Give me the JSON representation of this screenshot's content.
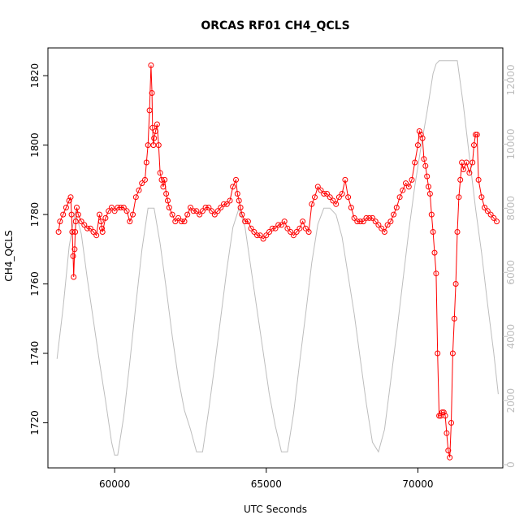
{
  "chart_data": {
    "type": "line",
    "title": "ORCAS RF01 CH4_QCLS",
    "xlabel": "UTC Seconds",
    "ylabel": "CH4_QCLS",
    "xlim": [
      57800,
      72800
    ],
    "ylim": [
      1707,
      1828
    ],
    "x_ticks": [
      60000,
      65000,
      70000
    ],
    "x_tick_labels": [
      "60000",
      "65000",
      "70000"
    ],
    "y_ticks": [
      1720,
      1740,
      1760,
      1780,
      1800,
      1820
    ],
    "y_tick_labels": [
      "1720",
      "1740",
      "1760",
      "1780",
      "1800",
      "1820"
    ],
    "y2_lim": [
      -100,
      13000
    ],
    "y2_ticks": [
      0,
      2000,
      4000,
      6000,
      8000,
      10000,
      12000
    ],
    "y2_tick_labels": [
      "0",
      "2000",
      "4000",
      "6000",
      "8000",
      "10000",
      "12000"
    ],
    "grid": false,
    "legend": "none",
    "colors": {
      "ch4": "#ff0000",
      "altitude": "#bdbdbd",
      "axis": "#000000"
    },
    "series": [
      {
        "marker": "open-circle",
        "axis": "left",
        "color": "#ff0000",
        "x": [
          58150,
          58200,
          58300,
          58400,
          58500,
          58550,
          58580,
          58600,
          58630,
          58650,
          58680,
          58700,
          58720,
          58750,
          58800,
          58900,
          59000,
          59100,
          59200,
          59300,
          59400,
          59500,
          59550,
          59580,
          59600,
          59700,
          59800,
          59900,
          60000,
          60100,
          60200,
          60300,
          60400,
          60500,
          60600,
          60700,
          60800,
          60900,
          61000,
          61050,
          61100,
          61150,
          61200,
          61230,
          61250,
          61280,
          61300,
          61350,
          61400,
          61450,
          61500,
          61550,
          61600,
          61650,
          61700,
          61750,
          61800,
          61900,
          62000,
          62100,
          62200,
          62300,
          62400,
          62500,
          62600,
          62700,
          62800,
          62900,
          63000,
          63100,
          63200,
          63300,
          63400,
          63500,
          63600,
          63700,
          63800,
          63900,
          64000,
          64050,
          64100,
          64150,
          64200,
          64300,
          64400,
          64500,
          64600,
          64700,
          64800,
          64900,
          65000,
          65100,
          65200,
          65300,
          65400,
          65500,
          65600,
          65700,
          65800,
          65900,
          66000,
          66100,
          66200,
          66300,
          66400,
          66500,
          66600,
          66700,
          66800,
          66900,
          67000,
          67100,
          67200,
          67300,
          67400,
          67500,
          67600,
          67700,
          67800,
          67900,
          68000,
          68100,
          68200,
          68300,
          68400,
          68500,
          68600,
          68700,
          68800,
          68900,
          69000,
          69100,
          69200,
          69300,
          69400,
          69500,
          69600,
          69700,
          69800,
          69900,
          70000,
          70050,
          70100,
          70150,
          70200,
          70250,
          70300,
          70350,
          70400,
          70450,
          70500,
          70550,
          70600,
          70650,
          70700,
          70750,
          70800,
          70850,
          70900,
          70950,
          71000,
          71050,
          71100,
          71150,
          71200,
          71250,
          71300,
          71350,
          71400,
          71450,
          71500,
          71600,
          71700,
          71800,
          71850,
          71900,
          71950,
          72000,
          72100,
          72200,
          72300,
          72400,
          72500,
          72600
        ],
        "values": [
          1775,
          1778,
          1780,
          1782,
          1784,
          1785,
          1780,
          1775,
          1768,
          1762,
          1770,
          1775,
          1778,
          1782,
          1780,
          1778,
          1777,
          1776,
          1776,
          1775,
          1774,
          1780,
          1778,
          1776,
          1775,
          1779,
          1781,
          1782,
          1781,
          1782,
          1782,
          1782,
          1781,
          1778,
          1780,
          1785,
          1787,
          1789,
          1790,
          1795,
          1800,
          1810,
          1823,
          1815,
          1805,
          1800,
          1802,
          1804,
          1806,
          1800,
          1792,
          1790,
          1788,
          1790,
          1786,
          1784,
          1782,
          1780,
          1778,
          1779,
          1778,
          1778,
          1780,
          1782,
          1781,
          1781,
          1780,
          1781,
          1782,
          1782,
          1781,
          1780,
          1781,
          1782,
          1783,
          1783,
          1784,
          1788,
          1790,
          1786,
          1784,
          1782,
          1780,
          1778,
          1778,
          1776,
          1775,
          1774,
          1774,
          1773,
          1774,
          1775,
          1776,
          1776,
          1777,
          1777,
          1778,
          1776,
          1775,
          1774,
          1775,
          1776,
          1778,
          1776,
          1775,
          1783,
          1785,
          1788,
          1787,
          1786,
          1786,
          1785,
          1784,
          1783,
          1785,
          1786,
          1790,
          1785,
          1782,
          1779,
          1778,
          1778,
          1778,
          1779,
          1779,
          1779,
          1778,
          1777,
          1776,
          1775,
          1777,
          1778,
          1780,
          1782,
          1785,
          1787,
          1789,
          1788,
          1790,
          1795,
          1800,
          1804,
          1803,
          1802,
          1796,
          1794,
          1791,
          1788,
          1786,
          1780,
          1775,
          1769,
          1763,
          1740,
          1722,
          1722,
          1723,
          1723,
          1722,
          1717,
          1712,
          1710,
          1720,
          1740,
          1750,
          1760,
          1775,
          1785,
          1790,
          1795,
          1793,
          1795,
          1792,
          1795,
          1800,
          1803,
          1803,
          1790,
          1785,
          1782,
          1781,
          1780,
          1779,
          1778
        ]
      },
      {
        "line_only": true,
        "axis": "right",
        "color": "#bdbdbd",
        "x": [
          58100,
          58300,
          58500,
          58700,
          58900,
          59100,
          59300,
          59500,
          59700,
          59900,
          60000,
          60100,
          60300,
          60500,
          60700,
          60900,
          61100,
          61300,
          61500,
          61700,
          61900,
          62100,
          62300,
          62500,
          62700,
          62900,
          63100,
          63300,
          63500,
          63700,
          63900,
          64100,
          64300,
          64500,
          64700,
          64900,
          65100,
          65300,
          65500,
          65700,
          65900,
          66100,
          66300,
          66500,
          66700,
          66900,
          67100,
          67300,
          67500,
          67700,
          67900,
          68100,
          68300,
          68500,
          68700,
          68900,
          69100,
          69300,
          69500,
          69700,
          69900,
          70100,
          70300,
          70500,
          70600,
          70700,
          70900,
          71100,
          71300,
          71500,
          71700,
          71900,
          72100,
          72300,
          72500,
          72650
        ],
        "values": [
          3300,
          4900,
          6800,
          7900,
          7200,
          5800,
          4500,
          3200,
          2000,
          700,
          300,
          300,
          1500,
          3200,
          5000,
          6700,
          8000,
          8000,
          6900,
          5500,
          4000,
          2700,
          1700,
          1100,
          400,
          400,
          1700,
          3100,
          4600,
          6100,
          7400,
          8000,
          7400,
          6100,
          4800,
          3500,
          2200,
          1200,
          400,
          400,
          1600,
          3200,
          4700,
          6300,
          7500,
          8000,
          8000,
          7800,
          7100,
          5900,
          4700,
          3300,
          1900,
          700,
          400,
          1100,
          2600,
          4100,
          5700,
          7300,
          8700,
          9900,
          11000,
          12200,
          12500,
          12600,
          12600,
          12600,
          12600,
          11200,
          9600,
          8000,
          6600,
          5000,
          3500,
          2200
        ]
      }
    ]
  }
}
